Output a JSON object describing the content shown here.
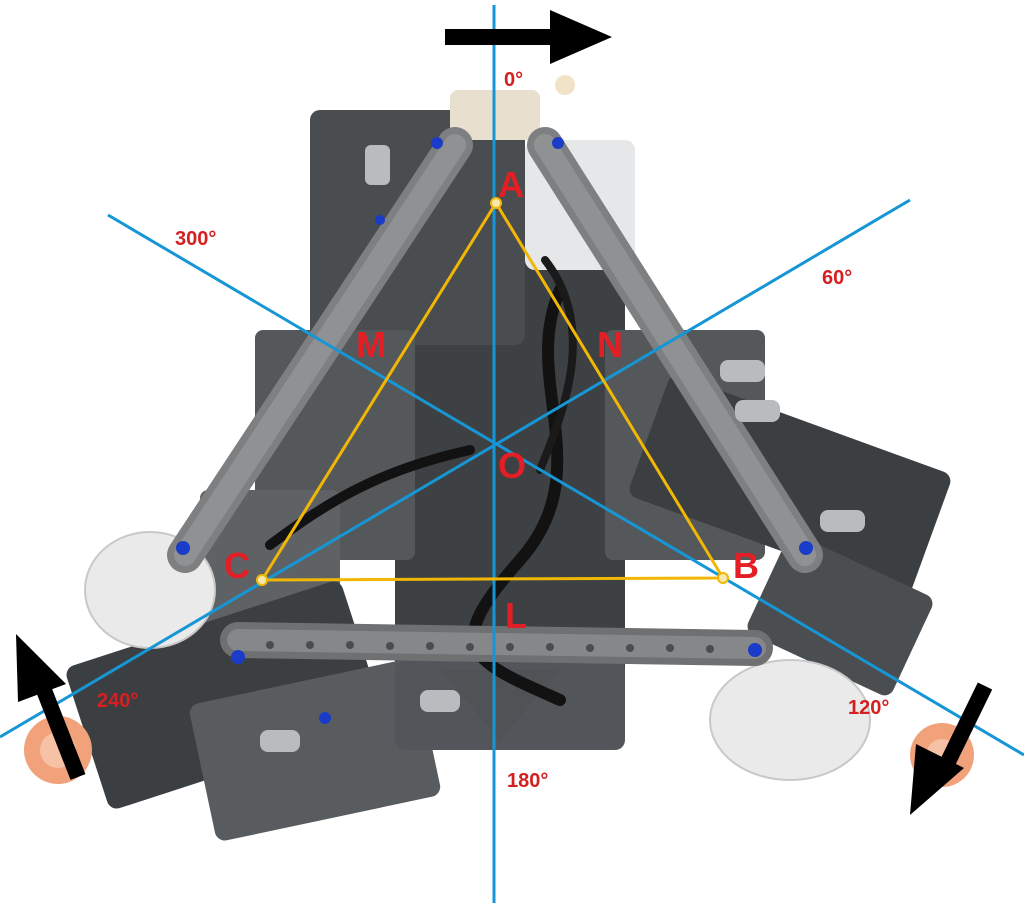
{
  "figure": {
    "vertices": [
      "A",
      "B",
      "C"
    ],
    "midpoints": [
      "L",
      "M",
      "N"
    ],
    "center": "O",
    "angles": [
      "0°",
      "60°",
      "120°",
      "180°",
      "240°",
      "300°"
    ],
    "colors": {
      "axes": "#1796d6",
      "triangle": "#f2b705",
      "label_letters": "#e31e24",
      "label_angles": "#d42020",
      "arrows": "#000000",
      "beam_grey": "#7d7f80",
      "dark_grey": "#3e4143",
      "light_grey": "#b9bcbe",
      "motor_white": "#e9e9e9",
      "wheel_orange": "#f2a27a",
      "pin_blue": "#1b3cc8"
    },
    "icons": [
      "wheel-a-icon",
      "wheel-b-icon",
      "wheel-c-icon",
      "direction-arrow-icon"
    ]
  }
}
